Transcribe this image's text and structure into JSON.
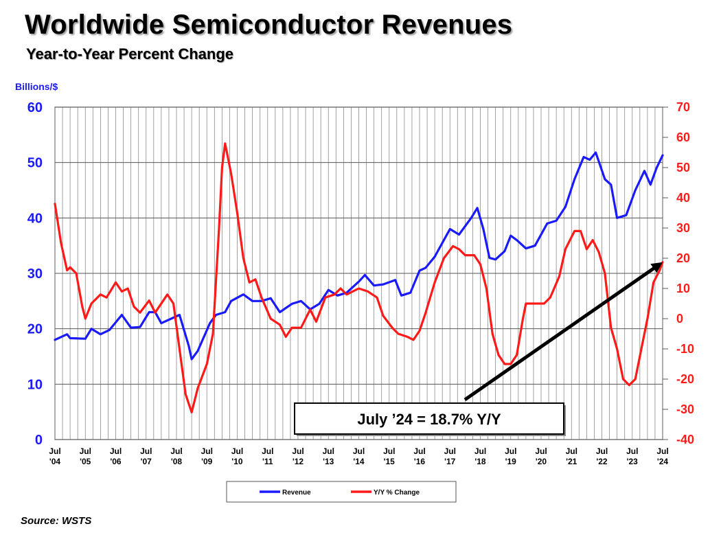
{
  "title": "Worldwide Semiconductor Revenues",
  "subtitle": "Year-to-Year Percent Change",
  "source": "Source: WSTS",
  "chart_data": {
    "type": "line",
    "title": "Worldwide Semiconductor Revenues",
    "subtitle": "Year-to-Year Percent Change",
    "ylabel_left": "Billions/$",
    "ylim_left": [
      0,
      60
    ],
    "ylim_right": [
      -40,
      70
    ],
    "left_ticks": [
      0,
      10,
      20,
      30,
      40,
      50,
      60
    ],
    "right_ticks": [
      -40,
      -30,
      -20,
      -10,
      0,
      10,
      20,
      30,
      40,
      50,
      60,
      70
    ],
    "x_month_labels": [
      "Jul",
      "Jul",
      "Jul",
      "Jul",
      "Jul",
      "Jul",
      "Jul",
      "Jul",
      "Jul",
      "Jul",
      "Jul",
      "Jul",
      "Jul",
      "Jul",
      "Jul",
      "Jul",
      "Jul",
      "Jul",
      "Jul",
      "Jul",
      "Jul"
    ],
    "x_year_labels": [
      "'04",
      "'05",
      "'06",
      "'07",
      "'08",
      "'09",
      "'10",
      "'11",
      "'12",
      "'13",
      "'14",
      "'15",
      "'16",
      "'17",
      "'18",
      "'19",
      "'20",
      "'21",
      "'22",
      "'23",
      "'24"
    ],
    "x_start": 2004.5,
    "x_end": 2024.5,
    "grid": true,
    "series": [
      {
        "name": "Revenue",
        "axis": "left",
        "color": "#1a1aff",
        "points": [
          [
            2004.5,
            18
          ],
          [
            2004.9,
            19
          ],
          [
            2005.0,
            18.3
          ],
          [
            2005.5,
            18.2
          ],
          [
            2005.7,
            20
          ],
          [
            2006.0,
            19
          ],
          [
            2006.3,
            19.8
          ],
          [
            2006.7,
            22.5
          ],
          [
            2007.0,
            20.2
          ],
          [
            2007.3,
            20.3
          ],
          [
            2007.6,
            23
          ],
          [
            2007.8,
            23
          ],
          [
            2008.0,
            21
          ],
          [
            2008.4,
            22
          ],
          [
            2008.6,
            22.5
          ],
          [
            2008.9,
            17
          ],
          [
            2009.0,
            14.5
          ],
          [
            2009.2,
            16
          ],
          [
            2009.6,
            21
          ],
          [
            2009.8,
            22.5
          ],
          [
            2010.1,
            23
          ],
          [
            2010.3,
            25
          ],
          [
            2010.7,
            26.2
          ],
          [
            2011.0,
            25
          ],
          [
            2011.3,
            25
          ],
          [
            2011.6,
            25.5
          ],
          [
            2011.9,
            23
          ],
          [
            2012.3,
            24.5
          ],
          [
            2012.6,
            25
          ],
          [
            2012.9,
            23.5
          ],
          [
            2013.2,
            24.5
          ],
          [
            2013.5,
            27
          ],
          [
            2013.8,
            26
          ],
          [
            2014.1,
            26.5
          ],
          [
            2014.5,
            28.5
          ],
          [
            2014.7,
            29.7
          ],
          [
            2015.0,
            27.8
          ],
          [
            2015.3,
            28
          ],
          [
            2015.7,
            28.8
          ],
          [
            2015.9,
            26
          ],
          [
            2016.2,
            26.5
          ],
          [
            2016.5,
            30.5
          ],
          [
            2016.7,
            31
          ],
          [
            2017.0,
            33
          ],
          [
            2017.3,
            36
          ],
          [
            2017.5,
            38
          ],
          [
            2017.8,
            37
          ],
          [
            2018.2,
            40
          ],
          [
            2018.4,
            41.8
          ],
          [
            2018.6,
            38
          ],
          [
            2018.8,
            32.8
          ],
          [
            2019.0,
            32.5
          ],
          [
            2019.3,
            34
          ],
          [
            2019.5,
            36.8
          ],
          [
            2019.7,
            36
          ],
          [
            2020.0,
            34.5
          ],
          [
            2020.3,
            35
          ],
          [
            2020.7,
            39
          ],
          [
            2021.0,
            39.5
          ],
          [
            2021.3,
            42
          ],
          [
            2021.6,
            47
          ],
          [
            2021.9,
            51
          ],
          [
            2022.1,
            50.5
          ],
          [
            2022.3,
            51.8
          ],
          [
            2022.6,
            47
          ],
          [
            2022.8,
            46
          ],
          [
            2023.0,
            40
          ],
          [
            2023.3,
            40.5
          ],
          [
            2023.6,
            45
          ],
          [
            2023.9,
            48.5
          ],
          [
            2024.1,
            46
          ],
          [
            2024.3,
            49
          ],
          [
            2024.5,
            51.3
          ]
        ]
      },
      {
        "name": "Y/Y % Change",
        "axis": "right",
        "color": "#ff1a1a",
        "points": [
          [
            2004.5,
            38
          ],
          [
            2004.7,
            25
          ],
          [
            2004.9,
            16
          ],
          [
            2005.0,
            17
          ],
          [
            2005.2,
            15
          ],
          [
            2005.4,
            4
          ],
          [
            2005.5,
            0
          ],
          [
            2005.7,
            5
          ],
          [
            2006.0,
            8
          ],
          [
            2006.2,
            7
          ],
          [
            2006.5,
            12
          ],
          [
            2006.7,
            9
          ],
          [
            2006.9,
            10
          ],
          [
            2007.1,
            4
          ],
          [
            2007.3,
            2
          ],
          [
            2007.6,
            6
          ],
          [
            2007.8,
            2
          ],
          [
            2008.2,
            8
          ],
          [
            2008.4,
            5
          ],
          [
            2008.6,
            -10
          ],
          [
            2008.8,
            -25
          ],
          [
            2009.0,
            -31
          ],
          [
            2009.2,
            -23
          ],
          [
            2009.5,
            -15
          ],
          [
            2009.7,
            -5
          ],
          [
            2009.9,
            30
          ],
          [
            2010.0,
            50
          ],
          [
            2010.1,
            58
          ],
          [
            2010.3,
            48
          ],
          [
            2010.5,
            35
          ],
          [
            2010.7,
            20
          ],
          [
            2010.9,
            12
          ],
          [
            2011.1,
            13
          ],
          [
            2011.3,
            7
          ],
          [
            2011.6,
            0
          ],
          [
            2011.9,
            -2
          ],
          [
            2012.1,
            -6
          ],
          [
            2012.3,
            -3
          ],
          [
            2012.6,
            -3
          ],
          [
            2012.9,
            3
          ],
          [
            2013.1,
            -1
          ],
          [
            2013.4,
            7
          ],
          [
            2013.7,
            8
          ],
          [
            2013.9,
            10
          ],
          [
            2014.1,
            8
          ],
          [
            2014.5,
            10
          ],
          [
            2014.8,
            9
          ],
          [
            2015.1,
            7
          ],
          [
            2015.3,
            1
          ],
          [
            2015.6,
            -3
          ],
          [
            2015.8,
            -5
          ],
          [
            2016.1,
            -6
          ],
          [
            2016.3,
            -7
          ],
          [
            2016.5,
            -4
          ],
          [
            2016.7,
            2
          ],
          [
            2017.0,
            12
          ],
          [
            2017.3,
            20
          ],
          [
            2017.6,
            24
          ],
          [
            2017.8,
            23
          ],
          [
            2018.0,
            21
          ],
          [
            2018.3,
            21
          ],
          [
            2018.5,
            18
          ],
          [
            2018.7,
            10
          ],
          [
            2018.9,
            -5
          ],
          [
            2019.1,
            -12
          ],
          [
            2019.3,
            -15
          ],
          [
            2019.5,
            -15
          ],
          [
            2019.7,
            -12
          ],
          [
            2019.9,
            0
          ],
          [
            2020.0,
            5
          ],
          [
            2020.3,
            5
          ],
          [
            2020.6,
            5
          ],
          [
            2020.8,
            7
          ],
          [
            2021.1,
            14
          ],
          [
            2021.3,
            23
          ],
          [
            2021.6,
            29
          ],
          [
            2021.8,
            29
          ],
          [
            2022.0,
            23
          ],
          [
            2022.2,
            26
          ],
          [
            2022.4,
            22
          ],
          [
            2022.6,
            15
          ],
          [
            2022.8,
            -3
          ],
          [
            2023.0,
            -10
          ],
          [
            2023.2,
            -20
          ],
          [
            2023.4,
            -22
          ],
          [
            2023.6,
            -20
          ],
          [
            2023.8,
            -10
          ],
          [
            2024.0,
            0
          ],
          [
            2024.2,
            12
          ],
          [
            2024.4,
            16
          ],
          [
            2024.5,
            18.7
          ]
        ]
      }
    ],
    "annotation": {
      "text": "July ’24 = 18.7% Y/Y",
      "arrow_to": [
        2024.5,
        18.7
      ]
    }
  }
}
